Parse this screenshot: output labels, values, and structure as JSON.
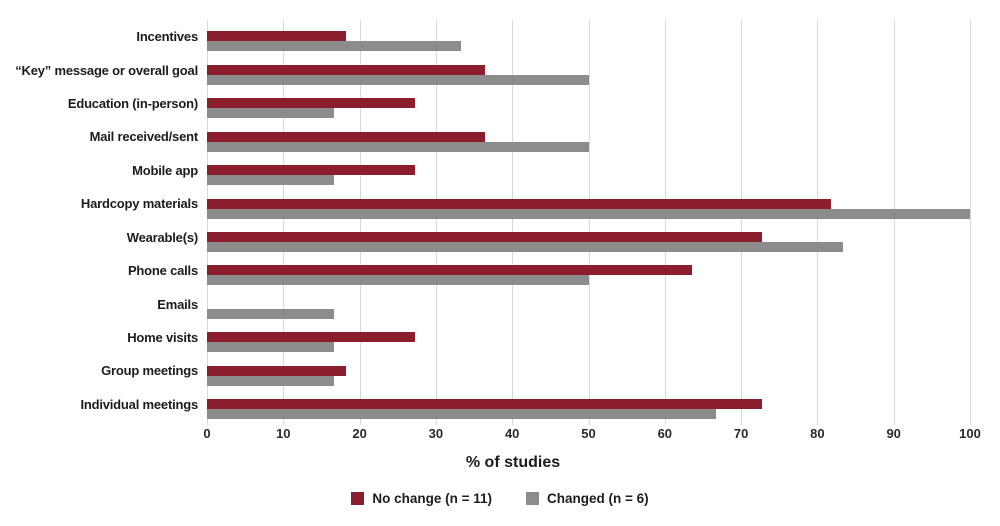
{
  "chart_data": {
    "type": "bar",
    "orientation": "horizontal",
    "title": "",
    "xlabel": "% of studies",
    "ylabel": "",
    "xlim": [
      0,
      100
    ],
    "xticks": [
      0,
      10,
      20,
      30,
      40,
      50,
      60,
      70,
      80,
      90,
      100
    ],
    "grid": "vertical",
    "legend_position": "bottom",
    "categories": [
      "Incentives",
      "“Key” message or overall goal",
      "Education (in-person)",
      "Mail received/sent",
      "Mobile app",
      "Hardcopy materials",
      "Wearable(s)",
      "Phone calls",
      "Emails",
      "Home visits",
      "Group meetings",
      "Individual meetings"
    ],
    "series": [
      {
        "name": "No change (n = 11)",
        "color": "#8a1e2c",
        "values": [
          18.2,
          36.4,
          27.3,
          36.4,
          27.3,
          81.8,
          72.7,
          63.6,
          0,
          27.3,
          18.2,
          72.7
        ]
      },
      {
        "name": "Changed (n = 6)",
        "color": "#8c8c8c",
        "values": [
          33.3,
          50.0,
          16.7,
          50.0,
          16.7,
          100.0,
          83.3,
          50.0,
          16.7,
          16.7,
          16.7,
          66.7
        ]
      }
    ]
  },
  "colors": {
    "gridline": "#d9d9d9",
    "text": "#1c1c1c",
    "background": "#ffffff"
  }
}
